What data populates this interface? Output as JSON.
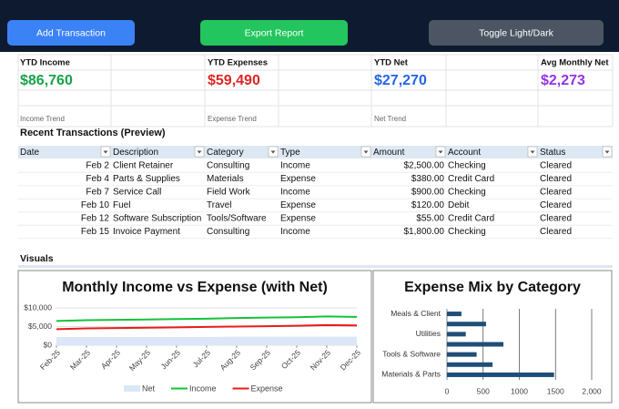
{
  "toolbar": {
    "buttons": [
      "Add Transaction",
      "Export Report",
      "Toggle Light/Dark"
    ]
  },
  "kpis": [
    {
      "label": "YTD Income",
      "value": "$86,760",
      "color": "#16a34a",
      "trend_label": "Income Trend"
    },
    {
      "label": "YTD Expenses",
      "value": "$59,490",
      "color": "#dc2626",
      "trend_label": "Expense Trend"
    },
    {
      "label": "YTD Net",
      "value": "$27,270",
      "color": "#2563eb",
      "trend_label": "Net Trend"
    },
    {
      "label": "Avg Monthly Net",
      "value": "$2,273",
      "color": "#9333ea"
    }
  ],
  "table": {
    "title": "Recent Transactions (Preview)",
    "columns": [
      "Date",
      "Description",
      "Category",
      "Type",
      "Amount",
      "Account",
      "Status"
    ],
    "rows": [
      [
        "Feb 2",
        "Client Retainer",
        "Consulting",
        "Income",
        "$2,500.00",
        "Checking",
        "Cleared"
      ],
      [
        "Feb 4",
        "Parts & Supplies",
        "Materials",
        "Expense",
        "$380.00",
        "Credit Card",
        "Cleared"
      ],
      [
        "Feb 7",
        "Service Call",
        "Field Work",
        "Income",
        "$900.00",
        "Checking",
        "Cleared"
      ],
      [
        "Feb 10",
        "Fuel",
        "Travel",
        "Expense",
        "$120.00",
        "Debit",
        "Cleared"
      ],
      [
        "Feb 12",
        "Software Subscription",
        "Tools/Software",
        "Expense",
        "$55.00",
        "Credit Card",
        "Cleared"
      ],
      [
        "Feb 15",
        "Invoice Payment",
        "Consulting",
        "Income",
        "$1,800.00",
        "Checking",
        "Cleared"
      ]
    ]
  },
  "visuals_title": "Visuals",
  "chart_data": [
    {
      "type": "line",
      "title": "Monthly Income vs Expense (with Net)",
      "categories": [
        "Feb-25",
        "Mar-25",
        "Apr-25",
        "May-25",
        "Jun-25",
        "Jul-25",
        "Aug-25",
        "Sep-25",
        "Oct-25",
        "Nov-25",
        "Dec-25"
      ],
      "series": [
        {
          "name": "Net",
          "kind": "area",
          "color": "#dbe7f7",
          "values": [
            2200,
            2200,
            2200,
            2200,
            2200,
            2200,
            2300,
            2300,
            2300,
            2300,
            2300
          ]
        },
        {
          "name": "Income",
          "kind": "line",
          "color": "#16c23a",
          "values": [
            6500,
            6700,
            6800,
            6900,
            7000,
            7100,
            7300,
            7400,
            7500,
            7700,
            7600
          ]
        },
        {
          "name": "Expense",
          "kind": "line",
          "color": "#e81c1c",
          "values": [
            4300,
            4500,
            4600,
            4700,
            4800,
            4900,
            5000,
            5100,
            5200,
            5400,
            5300
          ]
        }
      ],
      "ylim": [
        0,
        10000
      ],
      "yticks": [
        {
          "value": 0,
          "label": "$0"
        },
        {
          "value": 5000,
          "label": "$5,000"
        },
        {
          "value": 10000,
          "label": "$10,000"
        }
      ],
      "grid": true,
      "legend": "bottom"
    },
    {
      "type": "bar",
      "horizontal": true,
      "title": "Expense Mix by Category",
      "categories": [
        "Meals & Client",
        null,
        "Utilities",
        null,
        "Tools & Software",
        null,
        "Materials & Parts"
      ],
      "values": [
        200,
        540,
        260,
        780,
        410,
        630,
        1480
      ],
      "color": "#1f4e79",
      "xlim": [
        0,
        2000
      ],
      "xticks": [
        0,
        500,
        1000,
        1500,
        {
          "value": 2000,
          "label": "2,000"
        }
      ],
      "grid": true
    }
  ]
}
